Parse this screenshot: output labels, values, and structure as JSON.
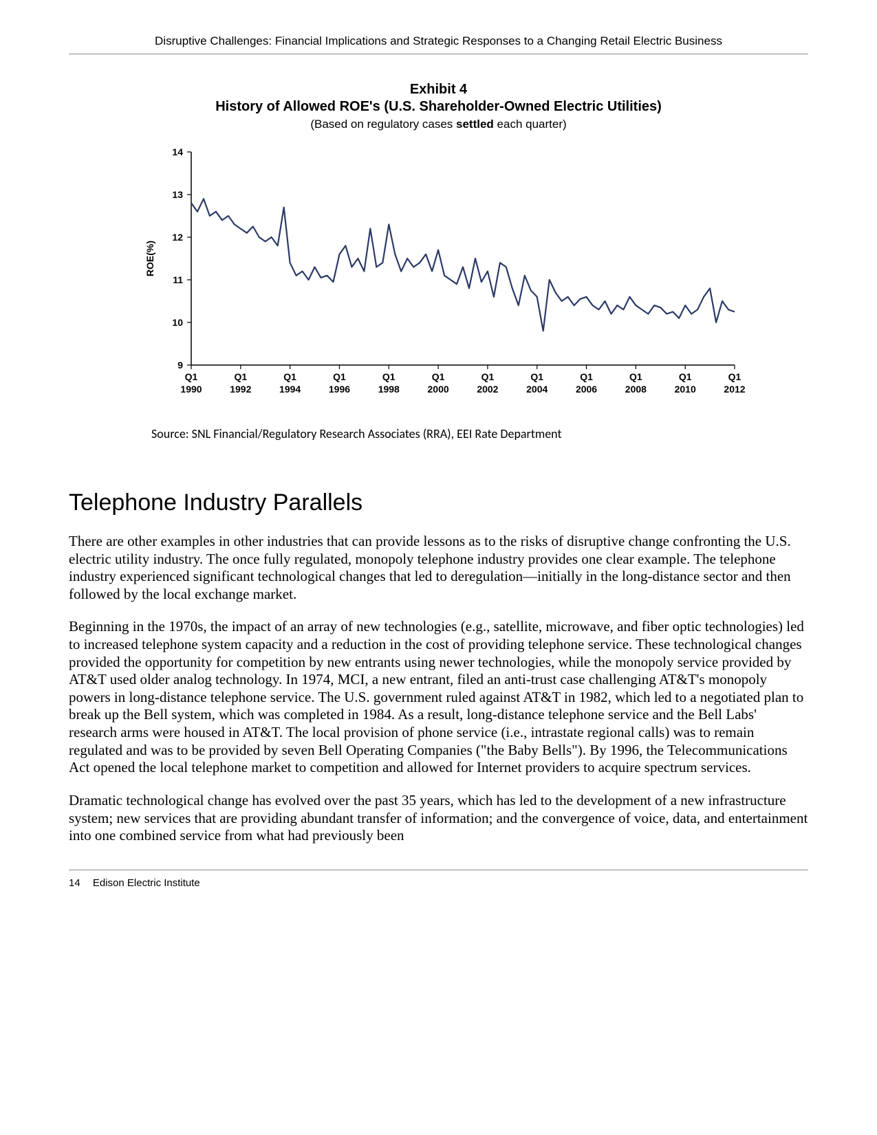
{
  "header": {
    "running_title": "Disruptive Challenges: Financial Implications and Strategic Responses to a Changing Retail Electric Business"
  },
  "exhibit": {
    "number_label": "Exhibit 4",
    "title": "History of Allowed ROE's (U.S. Shareholder-Owned Electric Utilities)",
    "subtitle_pre": "(Based on regulatory cases ",
    "subtitle_bold": "settled",
    "subtitle_post": " each quarter)",
    "source": "Source: SNL Financial/Regulatory Research Associates (RRA), EEI Rate Department"
  },
  "chart": {
    "type": "line",
    "ylabel": "ROE(%)",
    "y_axis": {
      "min": 9,
      "max": 14,
      "tick_step": 1,
      "tick_labels": [
        "9",
        "10",
        "11",
        "12",
        "13",
        "14"
      ]
    },
    "x_ticks": [
      "Q1\n1990",
      "Q1\n1992",
      "Q1\n1994",
      "Q1\n1996",
      "Q1\n1998",
      "Q1\n2000",
      "Q1\n2002",
      "Q1\n2004",
      "Q1\n2006",
      "Q1\n2008",
      "Q1\n2010",
      "Q1\n2012"
    ],
    "x_domain": [
      0,
      88
    ],
    "line_color": "#2b3a67",
    "line_width": 2.2,
    "axis_color": "#000000",
    "background_color": "#ffffff",
    "label_font_family": "Arial",
    "label_fontsize": 14,
    "ylabel_fontsize": 14,
    "series": [
      12.8,
      12.6,
      12.9,
      12.5,
      12.6,
      12.4,
      12.5,
      12.3,
      12.2,
      12.1,
      12.25,
      12.0,
      11.9,
      12.0,
      11.8,
      12.7,
      11.4,
      11.1,
      11.2,
      11.0,
      11.3,
      11.05,
      11.1,
      10.95,
      11.6,
      11.8,
      11.3,
      11.5,
      11.2,
      12.2,
      11.3,
      11.4,
      12.3,
      11.6,
      11.2,
      11.5,
      11.3,
      11.4,
      11.6,
      11.2,
      11.7,
      11.1,
      11.0,
      10.9,
      11.3,
      10.8,
      11.5,
      10.95,
      11.2,
      10.6,
      11.4,
      11.3,
      10.8,
      10.4,
      11.1,
      10.75,
      10.6,
      9.8,
      11.0,
      10.7,
      10.5,
      10.6,
      10.4,
      10.55,
      10.6,
      10.4,
      10.3,
      10.5,
      10.2,
      10.4,
      10.3,
      10.6,
      10.4,
      10.3,
      10.2,
      10.4,
      10.35,
      10.2,
      10.25,
      10.1,
      10.4,
      10.2,
      10.3,
      10.6,
      10.8,
      10.0,
      10.5,
      10.3,
      10.25
    ]
  },
  "section": {
    "heading": "Telephone Industry Parallels",
    "p1": "There are other examples in other industries that can provide lessons as to the risks of disruptive change confronting the U.S. electric utility industry. The once fully regulated, monopoly telephone industry provides one clear example. The telephone industry experienced significant technological changes that led to deregulation—initially in the long-distance sector and then followed by the local exchange market.",
    "p2": "Beginning in the 1970s, the impact of an array of new technologies (e.g., satellite, microwave, and fiber optic technologies) led to increased telephone system capacity and a reduction in the cost of providing telephone service. These technological changes provided the opportunity for competition by new entrants using newer technologies, while the monopoly service provided by AT&T used older analog technology. In 1974, MCI, a new entrant, filed an anti-trust case challenging AT&T's monopoly powers in long-distance telephone service. The U.S. government ruled against AT&T in 1982, which led to a negotiated plan to break up the Bell system, which was completed in 1984. As a result, long-distance telephone service and the Bell Labs' research arms were housed in AT&T. The local provision of phone service (i.e., intrastate regional calls) was to remain regulated and was to be provided by seven Bell Operating Companies (\"the Baby Bells\"). By 1996, the Telecommunications Act opened the local telephone market to competition and allowed for Internet providers to acquire spectrum services.",
    "p3": "Dramatic technological change has evolved over the past 35 years, which has led to the development of a new infrastructure system; new services that are providing abundant transfer of information; and the convergence of voice, data, and entertainment into one combined service from what had previously been"
  },
  "footer": {
    "page_number": "14",
    "publisher": "Edison Electric Institute"
  }
}
